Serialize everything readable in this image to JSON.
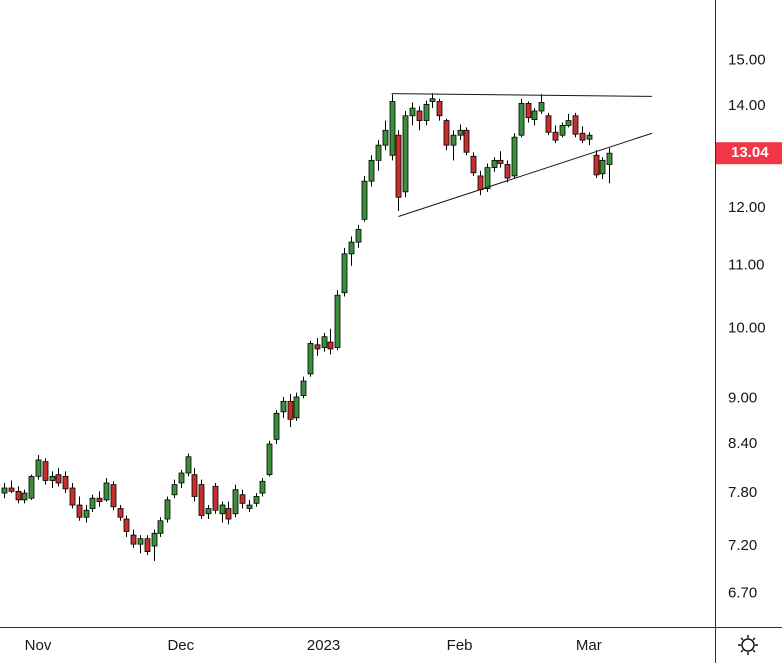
{
  "chart_data": {
    "type": "candlestick",
    "categories": [
      null,
      null,
      null,
      null,
      null,
      "Nov",
      null,
      null,
      null,
      null,
      null,
      null,
      null,
      null,
      null,
      null,
      null,
      null,
      null,
      null,
      null,
      null,
      null,
      null,
      null,
      null,
      "Dec",
      null,
      null,
      null,
      null,
      null,
      null,
      null,
      null,
      null,
      null,
      null,
      null,
      null,
      null,
      null,
      null,
      null,
      null,
      null,
      null,
      "2023",
      null,
      null,
      null,
      null,
      null,
      null,
      null,
      null,
      null,
      null,
      null,
      null,
      null,
      null,
      null,
      null,
      null,
      null,
      null,
      "Feb",
      null,
      null,
      null,
      null,
      null,
      null,
      null,
      null,
      null,
      null,
      null,
      null,
      null,
      null,
      null,
      null,
      null,
      null,
      "Mar",
      null,
      null,
      null
    ],
    "open": [
      7.8,
      7.86,
      7.82,
      7.72,
      7.74,
      8.0,
      8.18,
      7.95,
      8.02,
      8.0,
      7.86,
      7.66,
      7.52,
      7.62,
      7.74,
      7.72,
      7.9,
      7.62,
      7.5,
      7.32,
      7.22,
      7.28,
      7.2,
      7.34,
      7.5,
      7.78,
      7.92,
      8.04,
      8.02,
      7.9,
      7.56,
      7.88,
      7.56,
      7.62,
      7.56,
      7.78,
      7.62,
      7.68,
      7.8,
      8.02,
      8.46,
      8.82,
      8.96,
      8.74,
      9.04,
      9.34,
      9.76,
      9.72,
      9.8,
      9.72,
      10.56,
      11.2,
      11.4,
      11.8,
      12.5,
      12.9,
      13.2,
      13.0,
      13.4,
      12.3,
      13.8,
      13.9,
      13.7,
      14.1,
      14.1,
      13.7,
      13.2,
      13.4,
      13.5,
      12.98,
      12.6,
      12.36,
      12.76,
      12.9,
      12.82,
      12.6,
      13.4,
      14.06,
      13.72,
      13.9,
      13.8,
      13.46,
      13.4,
      13.6,
      13.8,
      13.44,
      13.32,
      13.0,
      12.64,
      12.82
    ],
    "high": [
      7.92,
      7.95,
      7.88,
      7.84,
      8.02,
      8.26,
      8.22,
      8.06,
      8.1,
      8.06,
      7.92,
      7.76,
      7.66,
      7.78,
      7.82,
      7.98,
      7.94,
      7.66,
      7.54,
      7.38,
      7.32,
      7.32,
      7.38,
      7.52,
      7.76,
      7.96,
      8.08,
      8.28,
      8.1,
      7.96,
      7.66,
      7.92,
      7.7,
      7.7,
      7.9,
      7.84,
      7.72,
      7.8,
      7.98,
      8.44,
      8.84,
      9.02,
      9.06,
      9.08,
      9.3,
      9.82,
      9.86,
      9.94,
      10.0,
      10.6,
      11.3,
      11.5,
      11.7,
      12.6,
      13.0,
      13.3,
      13.7,
      14.25,
      13.5,
      13.9,
      14.08,
      14.0,
      14.12,
      14.28,
      14.16,
      13.74,
      13.5,
      13.62,
      13.56,
      13.06,
      12.7,
      12.84,
      12.96,
      13.08,
      12.9,
      13.44,
      14.16,
      14.1,
      13.96,
      14.26,
      13.86,
      13.6,
      13.66,
      13.84,
      13.86,
      13.58,
      13.46,
      13.1,
      12.96,
      13.14
    ],
    "low": [
      7.74,
      7.8,
      7.68,
      7.68,
      7.72,
      7.96,
      7.9,
      7.86,
      7.88,
      7.8,
      7.62,
      7.48,
      7.46,
      7.58,
      7.64,
      7.7,
      7.6,
      7.48,
      7.3,
      7.18,
      7.12,
      7.1,
      7.04,
      7.3,
      7.46,
      7.74,
      7.86,
      8.0,
      7.7,
      7.5,
      7.5,
      7.56,
      7.46,
      7.44,
      7.52,
      7.62,
      7.58,
      7.64,
      7.76,
      8.0,
      8.4,
      8.74,
      8.62,
      8.7,
      9.0,
      9.3,
      9.6,
      9.66,
      9.62,
      9.68,
      10.5,
      11.0,
      11.3,
      11.76,
      12.4,
      12.7,
      13.1,
      12.9,
      11.95,
      12.2,
      13.6,
      13.5,
      13.6,
      13.96,
      13.7,
      13.1,
      12.9,
      13.3,
      13.0,
      12.6,
      12.24,
      12.3,
      12.68,
      12.76,
      12.48,
      12.56,
      13.36,
      13.66,
      13.6,
      13.84,
      13.4,
      13.24,
      13.36,
      13.56,
      13.36,
      13.24,
      13.2,
      12.56,
      12.54,
      12.46
    ],
    "close": [
      7.86,
      7.82,
      7.72,
      7.8,
      8.0,
      8.2,
      7.95,
      8.0,
      7.92,
      7.85,
      7.66,
      7.52,
      7.6,
      7.74,
      7.7,
      7.92,
      7.64,
      7.52,
      7.36,
      7.22,
      7.28,
      7.14,
      7.34,
      7.48,
      7.72,
      7.9,
      8.04,
      8.24,
      7.76,
      7.54,
      7.62,
      7.6,
      7.66,
      7.5,
      7.84,
      7.68,
      7.66,
      7.76,
      7.94,
      8.4,
      8.8,
      8.96,
      8.72,
      9.02,
      9.24,
      9.78,
      9.7,
      9.88,
      9.7,
      10.52,
      11.2,
      11.4,
      11.62,
      12.5,
      12.9,
      13.2,
      13.5,
      14.1,
      12.2,
      13.8,
      13.96,
      13.7,
      14.04,
      14.16,
      13.8,
      13.2,
      13.4,
      13.5,
      13.06,
      12.66,
      12.34,
      12.76,
      12.9,
      12.84,
      12.56,
      13.36,
      14.06,
      13.76,
      13.9,
      14.08,
      13.46,
      13.3,
      13.6,
      13.7,
      13.42,
      13.3,
      13.4,
      12.62,
      12.9,
      13.04
    ],
    "up_color": "#3b8f3b",
    "down_color": "#c8302c",
    "outline_color": "#000000",
    "last_price_color": "#f23645",
    "log_scale": true,
    "ylim": [
      6.37,
      16.44
    ],
    "yticks": [
      {
        "value": 15,
        "label": "15.00"
      },
      {
        "value": 14,
        "label": "14.00"
      },
      {
        "value": 12,
        "label": "12.00"
      },
      {
        "value": 11,
        "label": "11.00"
      },
      {
        "value": 10,
        "label": "10.00"
      },
      {
        "value": 9,
        "label": "9.00"
      },
      {
        "value": 8.4,
        "label": "8.40"
      },
      {
        "value": 7.8,
        "label": "7.80"
      },
      {
        "value": 7.2,
        "label": "7.20"
      },
      {
        "value": 6.7,
        "label": "6.70"
      }
    ],
    "trendlines": [
      {
        "x": [
          57,
          95.3
        ],
        "y": [
          14.27,
          14.21
        ]
      },
      {
        "x": [
          58,
          95.3
        ],
        "y": [
          11.85,
          13.44
        ]
      }
    ]
  }
}
